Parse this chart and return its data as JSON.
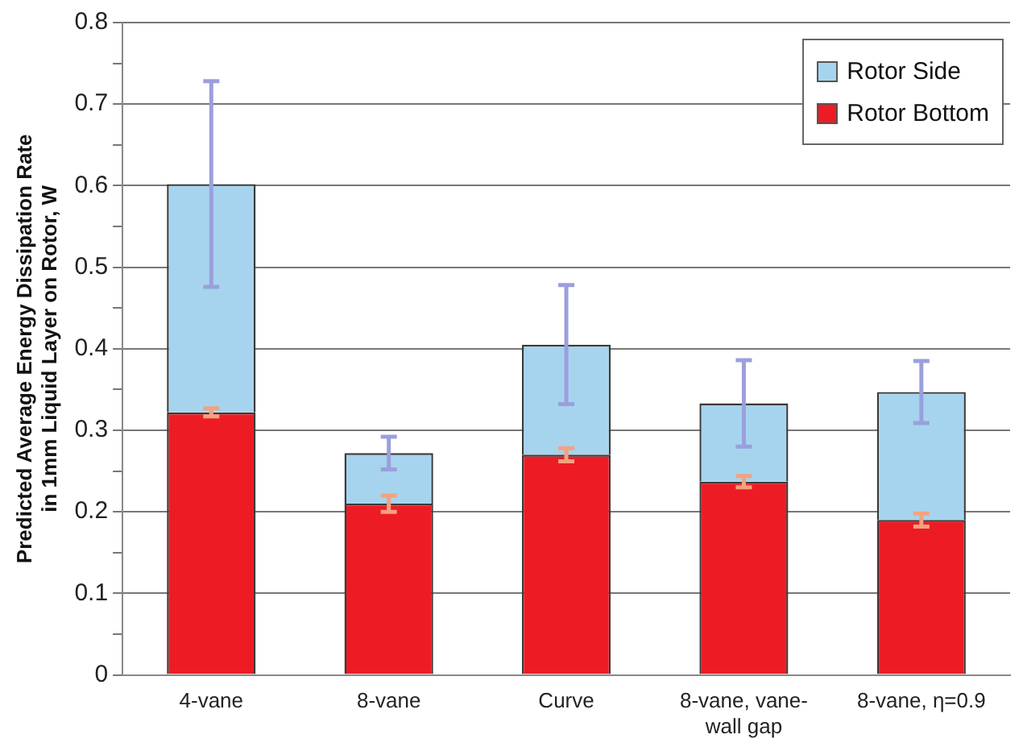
{
  "chart_data": {
    "type": "bar",
    "stacked": true,
    "ylabel": "Predicted Average Energy Dissipation Rate\nin 1mm Liquid Layer on Rotor, W",
    "categories": [
      "4-vane",
      "8-vane",
      "Curve",
      "8-vane, vane-wall gap",
      "8-vane, η=0.9"
    ],
    "series": [
      {
        "name": "Rotor Bottom",
        "color": "#ed1c24",
        "values": [
          0.322,
          0.21,
          0.27,
          0.237,
          0.19
        ],
        "errors": [
          0.005,
          0.01,
          0.008,
          0.007,
          0.008
        ]
      },
      {
        "name": "Rotor Side",
        "color": "#a6d4ee",
        "values": [
          0.28,
          0.062,
          0.135,
          0.096,
          0.157
        ],
        "errors": [
          0.126,
          0.02,
          0.073,
          0.053,
          0.038
        ]
      }
    ],
    "ylim": [
      0,
      0.8
    ],
    "yticks": [
      0,
      {
        "value": 0.05,
        "label": null
      },
      0.1,
      {
        "value": 0.15,
        "label": null
      },
      0.2,
      {
        "value": 0.25,
        "label": null
      },
      0.3,
      {
        "value": 0.35,
        "label": null
      },
      0.4,
      {
        "value": 0.45,
        "label": null
      },
      0.5,
      {
        "value": 0.55,
        "label": null
      },
      0.6,
      {
        "value": 0.65,
        "label": null
      },
      0.7,
      {
        "value": 0.75,
        "label": null
      },
      0.8
    ],
    "grid": "y",
    "legend": "top right"
  }
}
